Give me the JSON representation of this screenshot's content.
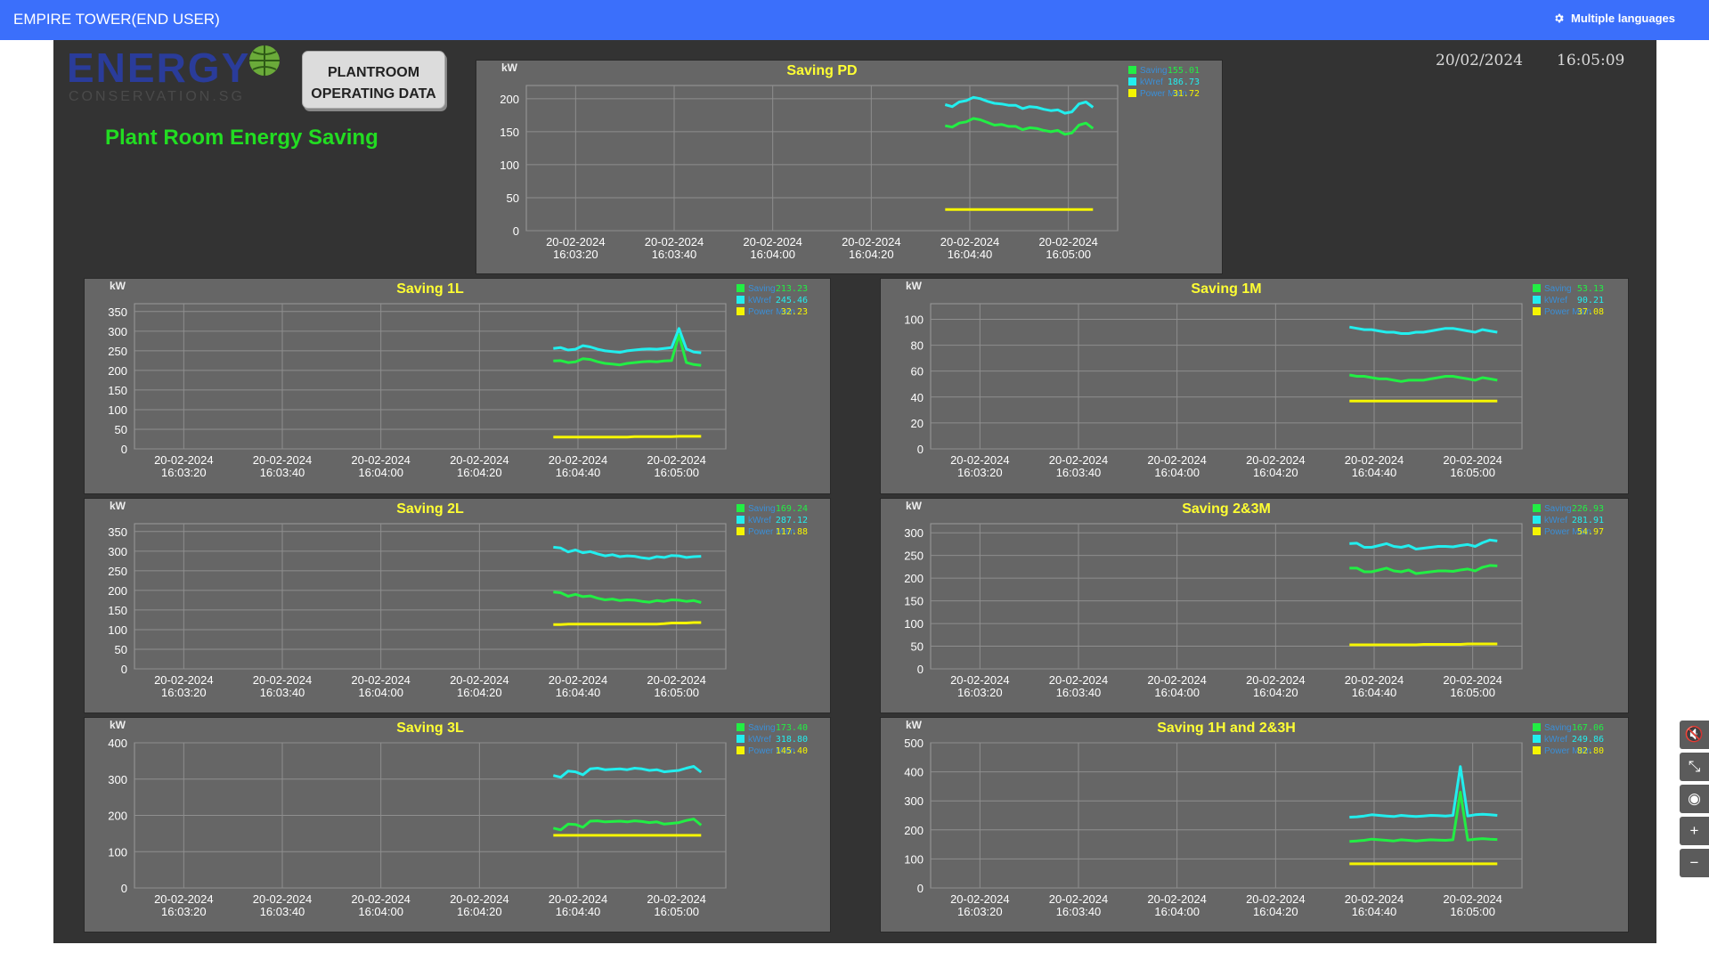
{
  "header": {
    "title": "EMPIRE TOWER(END USER)",
    "language_label": "Multiple languages",
    "language_icon": "gear-icon"
  },
  "logo": {
    "word": "ENERGY",
    "sub": "CONSERVATION.SG"
  },
  "plantroom_button": {
    "line1": "PLANTROOM",
    "line2": "OPERATING DATA"
  },
  "page_heading": "Plant Room Energy Saving",
  "clock": {
    "date": "20/02/2024",
    "time": "16:05:09"
  },
  "colors": {
    "saving": "#22ee44",
    "kwref": "#22eeee",
    "power_main": "#f5f500",
    "title": "#ffff33",
    "panel": "#666666"
  },
  "side_tools": [
    {
      "name": "mute-icon",
      "glyph": "🔇"
    },
    {
      "name": "collapse-icon",
      "glyph": "⤡"
    },
    {
      "name": "hide-icon",
      "glyph": "◉"
    },
    {
      "name": "zoom-in-icon",
      "glyph": "+"
    },
    {
      "name": "zoom-out-icon",
      "glyph": "−"
    }
  ],
  "chart_data": [
    {
      "type": "line",
      "title": "Saving PD",
      "ylabel": "kW",
      "ylim": [
        0,
        220
      ],
      "yticks": [
        0,
        50,
        100,
        150,
        200
      ],
      "x_ticks": [
        "20-02-2024 16:03:20",
        "20-02-2024 16:03:40",
        "20-02-2024 16:04:00",
        "20-02-2024 16:04:20",
        "20-02-2024 16:04:40",
        "20-02-2024 16:05:00"
      ],
      "series": [
        {
          "name": "Saving",
          "current": "155.01",
          "values": [
            159,
            157,
            163,
            165,
            170,
            168,
            164,
            160,
            161,
            158,
            158,
            153,
            156,
            155,
            152,
            150,
            152,
            146,
            148,
            160,
            163,
            155
          ]
        },
        {
          "name": "kWref",
          "current": "186.73",
          "values": [
            191,
            188,
            195,
            197,
            202,
            200,
            196,
            193,
            192,
            190,
            190,
            185,
            188,
            187,
            184,
            182,
            183,
            178,
            180,
            192,
            195,
            187
          ]
        },
        {
          "name": "Power Main",
          "current": "31.72",
          "values": [
            32,
            32,
            32,
            32,
            32,
            32,
            32,
            32,
            32,
            32,
            32,
            32,
            32,
            32,
            32,
            32,
            32,
            32,
            32,
            32,
            32,
            32
          ]
        }
      ]
    },
    {
      "type": "line",
      "title": "Saving 1L",
      "ylabel": "kW",
      "ylim": [
        0,
        370
      ],
      "yticks": [
        0,
        50,
        100,
        150,
        200,
        250,
        300,
        350
      ],
      "x_ticks": [
        "20-02-2024 16:03:20",
        "20-02-2024 16:03:40",
        "20-02-2024 16:04:00",
        "20-02-2024 16:04:20",
        "20-02-2024 16:04:40",
        "20-02-2024 16:05:00"
      ],
      "series": [
        {
          "name": "Saving",
          "current": "213.23",
          "values": [
            224,
            225,
            220,
            222,
            230,
            228,
            222,
            218,
            216,
            214,
            218,
            220,
            222,
            223,
            222,
            224,
            225,
            290,
            220,
            215,
            213
          ]
        },
        {
          "name": "kWref",
          "current": "245.46",
          "values": [
            256,
            258,
            252,
            254,
            263,
            260,
            254,
            250,
            248,
            246,
            250,
            252,
            254,
            255,
            254,
            256,
            258,
            307,
            255,
            247,
            245
          ]
        },
        {
          "name": "Power Main",
          "current": "32.23",
          "values": [
            30,
            30,
            30,
            30,
            30,
            30,
            30,
            30,
            30,
            30,
            30,
            31,
            31,
            31,
            31,
            31,
            31,
            32,
            32,
            32,
            32
          ]
        }
      ]
    },
    {
      "type": "line",
      "title": "Saving 1M",
      "ylabel": "kW",
      "ylim": [
        0,
        112
      ],
      "yticks": [
        0,
        20,
        40,
        60,
        80,
        100
      ],
      "x_ticks": [
        "20-02-2024 16:03:20",
        "20-02-2024 16:03:40",
        "20-02-2024 16:04:00",
        "20-02-2024 16:04:20",
        "20-02-2024 16:04:40",
        "20-02-2024 16:05:00"
      ],
      "series": [
        {
          "name": "Saving",
          "current": "53.13",
          "values": [
            57,
            56,
            56,
            55,
            54,
            54,
            53,
            52,
            53,
            53,
            53,
            54,
            55,
            56,
            56,
            55,
            54,
            53,
            55,
            54,
            53
          ]
        },
        {
          "name": "kWref",
          "current": "90.21",
          "values": [
            94,
            93,
            92,
            92,
            91,
            90,
            90,
            89,
            89,
            90,
            90,
            91,
            92,
            93,
            93,
            92,
            91,
            90,
            92,
            91,
            90
          ]
        },
        {
          "name": "Power Main",
          "current": "37.08",
          "values": [
            37,
            37,
            37,
            37,
            37,
            37,
            37,
            37,
            37,
            37,
            37,
            37,
            37,
            37,
            37,
            37,
            37,
            37,
            37,
            37,
            37
          ]
        }
      ]
    },
    {
      "type": "line",
      "title": "Saving 2L",
      "ylabel": "kW",
      "ylim": [
        0,
        370
      ],
      "yticks": [
        0,
        50,
        100,
        150,
        200,
        250,
        300,
        350
      ],
      "x_ticks": [
        "20-02-2024 16:03:20",
        "20-02-2024 16:03:40",
        "20-02-2024 16:04:00",
        "20-02-2024 16:04:20",
        "20-02-2024 16:04:40",
        "20-02-2024 16:05:00"
      ],
      "series": [
        {
          "name": "Saving",
          "current": "169.24",
          "values": [
            196,
            194,
            185,
            190,
            184,
            186,
            180,
            176,
            178,
            174,
            176,
            175,
            172,
            170,
            174,
            172,
            176,
            175,
            172,
            174,
            169
          ]
        },
        {
          "name": "kWref",
          "current": "287.12",
          "values": [
            310,
            308,
            298,
            303,
            296,
            299,
            293,
            288,
            291,
            286,
            288,
            287,
            283,
            281,
            286,
            284,
            289,
            288,
            284,
            286,
            287
          ]
        },
        {
          "name": "Power Main",
          "current": "117.88",
          "values": [
            113,
            113,
            114,
            114,
            114,
            114,
            114,
            114,
            114,
            114,
            114,
            114,
            114,
            114,
            114,
            115,
            117,
            117,
            117,
            118,
            118
          ]
        }
      ]
    },
    {
      "type": "line",
      "title": "Saving 2&3M",
      "ylabel": "kW",
      "ylim": [
        0,
        320
      ],
      "yticks": [
        0,
        50,
        100,
        150,
        200,
        250,
        300
      ],
      "x_ticks": [
        "20-02-2024 16:03:20",
        "20-02-2024 16:03:40",
        "20-02-2024 16:04:00",
        "20-02-2024 16:04:20",
        "20-02-2024 16:04:40",
        "20-02-2024 16:05:00"
      ],
      "series": [
        {
          "name": "Saving",
          "current": "226.93",
          "values": [
            222,
            222,
            214,
            214,
            218,
            222,
            216,
            214,
            218,
            210,
            212,
            214,
            216,
            216,
            215,
            218,
            220,
            216,
            224,
            228,
            227
          ]
        },
        {
          "name": "kWref",
          "current": "281.91",
          "values": [
            276,
            277,
            268,
            268,
            272,
            276,
            270,
            268,
            272,
            264,
            266,
            268,
            270,
            270,
            269,
            272,
            274,
            270,
            278,
            284,
            282
          ]
        },
        {
          "name": "Power Main",
          "current": "54.97",
          "values": [
            53,
            53,
            53,
            53,
            53,
            53,
            53,
            53,
            53,
            53,
            54,
            54,
            54,
            54,
            54,
            54,
            55,
            55,
            55,
            55,
            55
          ]
        }
      ]
    },
    {
      "type": "line",
      "title": "Saving 3L",
      "ylabel": "kW",
      "ylim": [
        0,
        400
      ],
      "yticks": [
        0,
        100,
        200,
        300,
        400
      ],
      "x_ticks": [
        "20-02-2024 16:03:20",
        "20-02-2024 16:03:40",
        "20-02-2024 16:04:00",
        "20-02-2024 16:04:20",
        "20-02-2024 16:04:40",
        "20-02-2024 16:05:00"
      ],
      "series": [
        {
          "name": "Saving",
          "current": "173.40",
          "values": [
            165,
            160,
            176,
            175,
            167,
            184,
            185,
            182,
            183,
            184,
            182,
            185,
            183,
            180,
            182,
            176,
            178,
            180,
            186,
            190,
            173
          ]
        },
        {
          "name": "kWref",
          "current": "318.80",
          "values": [
            310,
            305,
            322,
            320,
            312,
            328,
            330,
            326,
            327,
            328,
            326,
            330,
            328,
            324,
            326,
            320,
            322,
            324,
            330,
            335,
            319
          ]
        },
        {
          "name": "Power Main",
          "current": "145.40",
          "values": [
            145,
            145,
            145,
            145,
            145,
            145,
            145,
            145,
            145,
            145,
            145,
            145,
            145,
            145,
            145,
            145,
            145,
            145,
            145,
            145,
            145
          ]
        }
      ]
    },
    {
      "type": "line",
      "title": "Saving 1H and 2&3H",
      "ylabel": "kW",
      "ylim": [
        0,
        500
      ],
      "yticks": [
        0,
        100,
        200,
        300,
        400,
        500
      ],
      "x_ticks": [
        "20-02-2024 16:03:20",
        "20-02-2024 16:03:40",
        "20-02-2024 16:04:00",
        "20-02-2024 16:04:20",
        "20-02-2024 16:04:40",
        "20-02-2024 16:05:00"
      ],
      "series": [
        {
          "name": "Saving",
          "current": "167.06",
          "values": [
            160,
            162,
            164,
            168,
            166,
            164,
            162,
            166,
            164,
            162,
            164,
            166,
            165,
            164,
            166,
            330,
            165,
            168,
            170,
            168,
            167
          ]
        },
        {
          "name": "kWref",
          "current": "249.86",
          "values": [
            244,
            245,
            248,
            252,
            250,
            248,
            246,
            250,
            248,
            246,
            248,
            250,
            249,
            248,
            250,
            418,
            248,
            252,
            254,
            252,
            250
          ]
        },
        {
          "name": "Power Main",
          "current": "82.80",
          "values": [
            83,
            83,
            83,
            83,
            83,
            83,
            83,
            83,
            83,
            83,
            83,
            83,
            83,
            83,
            83,
            83,
            83,
            83,
            83,
            83,
            83
          ]
        }
      ]
    }
  ]
}
